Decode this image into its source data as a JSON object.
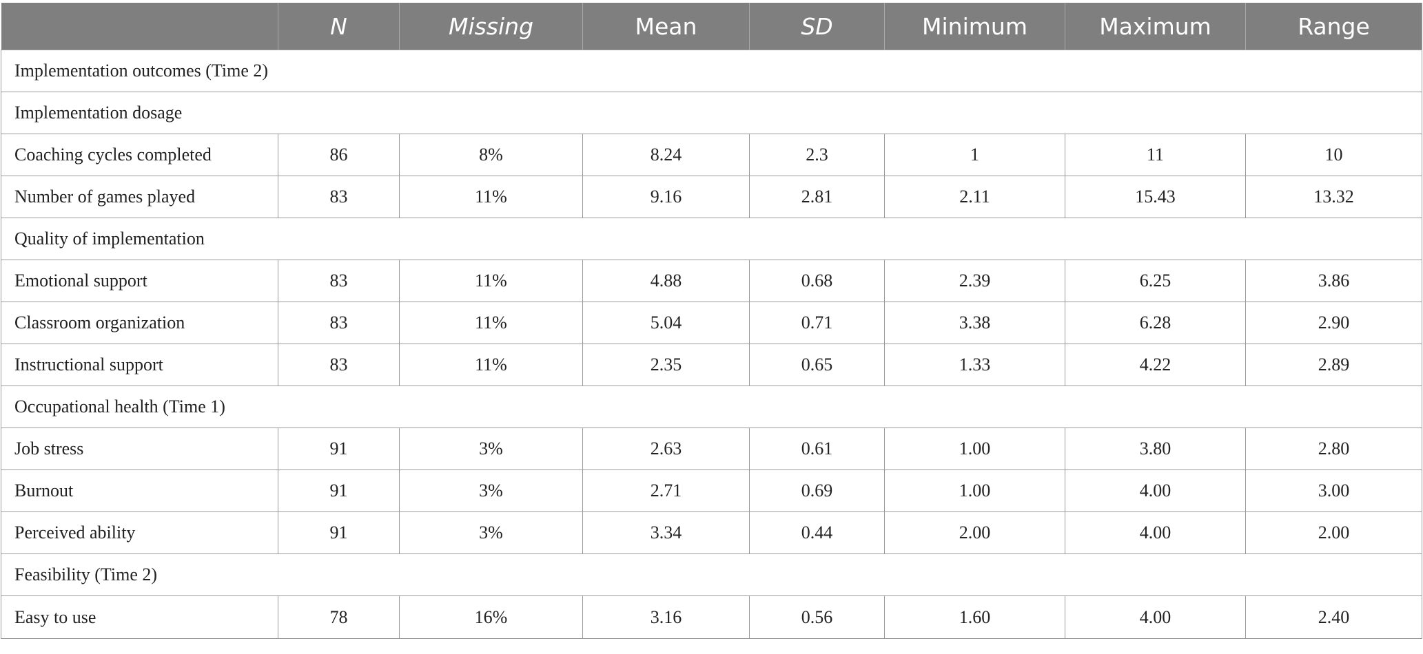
{
  "table": {
    "headers": [
      "",
      "N",
      "Missing",
      "Mean",
      "SD",
      "Minimum",
      "Maximum",
      "Range"
    ],
    "rows": [
      {
        "section": "Implementation outcomes (Time 2)"
      },
      {
        "section": "Implementation dosage"
      },
      {
        "cells": [
          "Coaching cycles completed",
          "86",
          "8%",
          "8.24",
          "2.3",
          "1",
          "11",
          "10"
        ]
      },
      {
        "cells": [
          "Number of games played",
          "83",
          "11%",
          "9.16",
          "2.81",
          "2.11",
          "15.43",
          "13.32"
        ]
      },
      {
        "section": "Quality of implementation"
      },
      {
        "cells": [
          "Emotional support",
          "83",
          "11%",
          "4.88",
          "0.68",
          "2.39",
          "6.25",
          "3.86"
        ]
      },
      {
        "cells": [
          "Classroom organization",
          "83",
          "11%",
          "5.04",
          "0.71",
          "3.38",
          "6.28",
          "2.90"
        ]
      },
      {
        "cells": [
          "Instructional support",
          "83",
          "11%",
          "2.35",
          "0.65",
          "1.33",
          "4.22",
          "2.89"
        ]
      },
      {
        "section": "Occupational health (Time 1)"
      },
      {
        "cells": [
          "Job stress",
          "91",
          "3%",
          "2.63",
          "0.61",
          "1.00",
          "3.80",
          "2.80"
        ]
      },
      {
        "cells": [
          "Burnout",
          "91",
          "3%",
          "2.71",
          "0.69",
          "1.00",
          "4.00",
          "3.00"
        ]
      },
      {
        "cells": [
          "Perceived ability",
          "91",
          "3%",
          "3.34",
          "0.44",
          "2.00",
          "4.00",
          "2.00"
        ]
      },
      {
        "section": "Feasibility (Time 2)"
      },
      {
        "cells": [
          "Easy to use",
          "78",
          "16%",
          "3.16",
          "0.56",
          "1.60",
          "4.00",
          "2.40"
        ]
      }
    ]
  }
}
